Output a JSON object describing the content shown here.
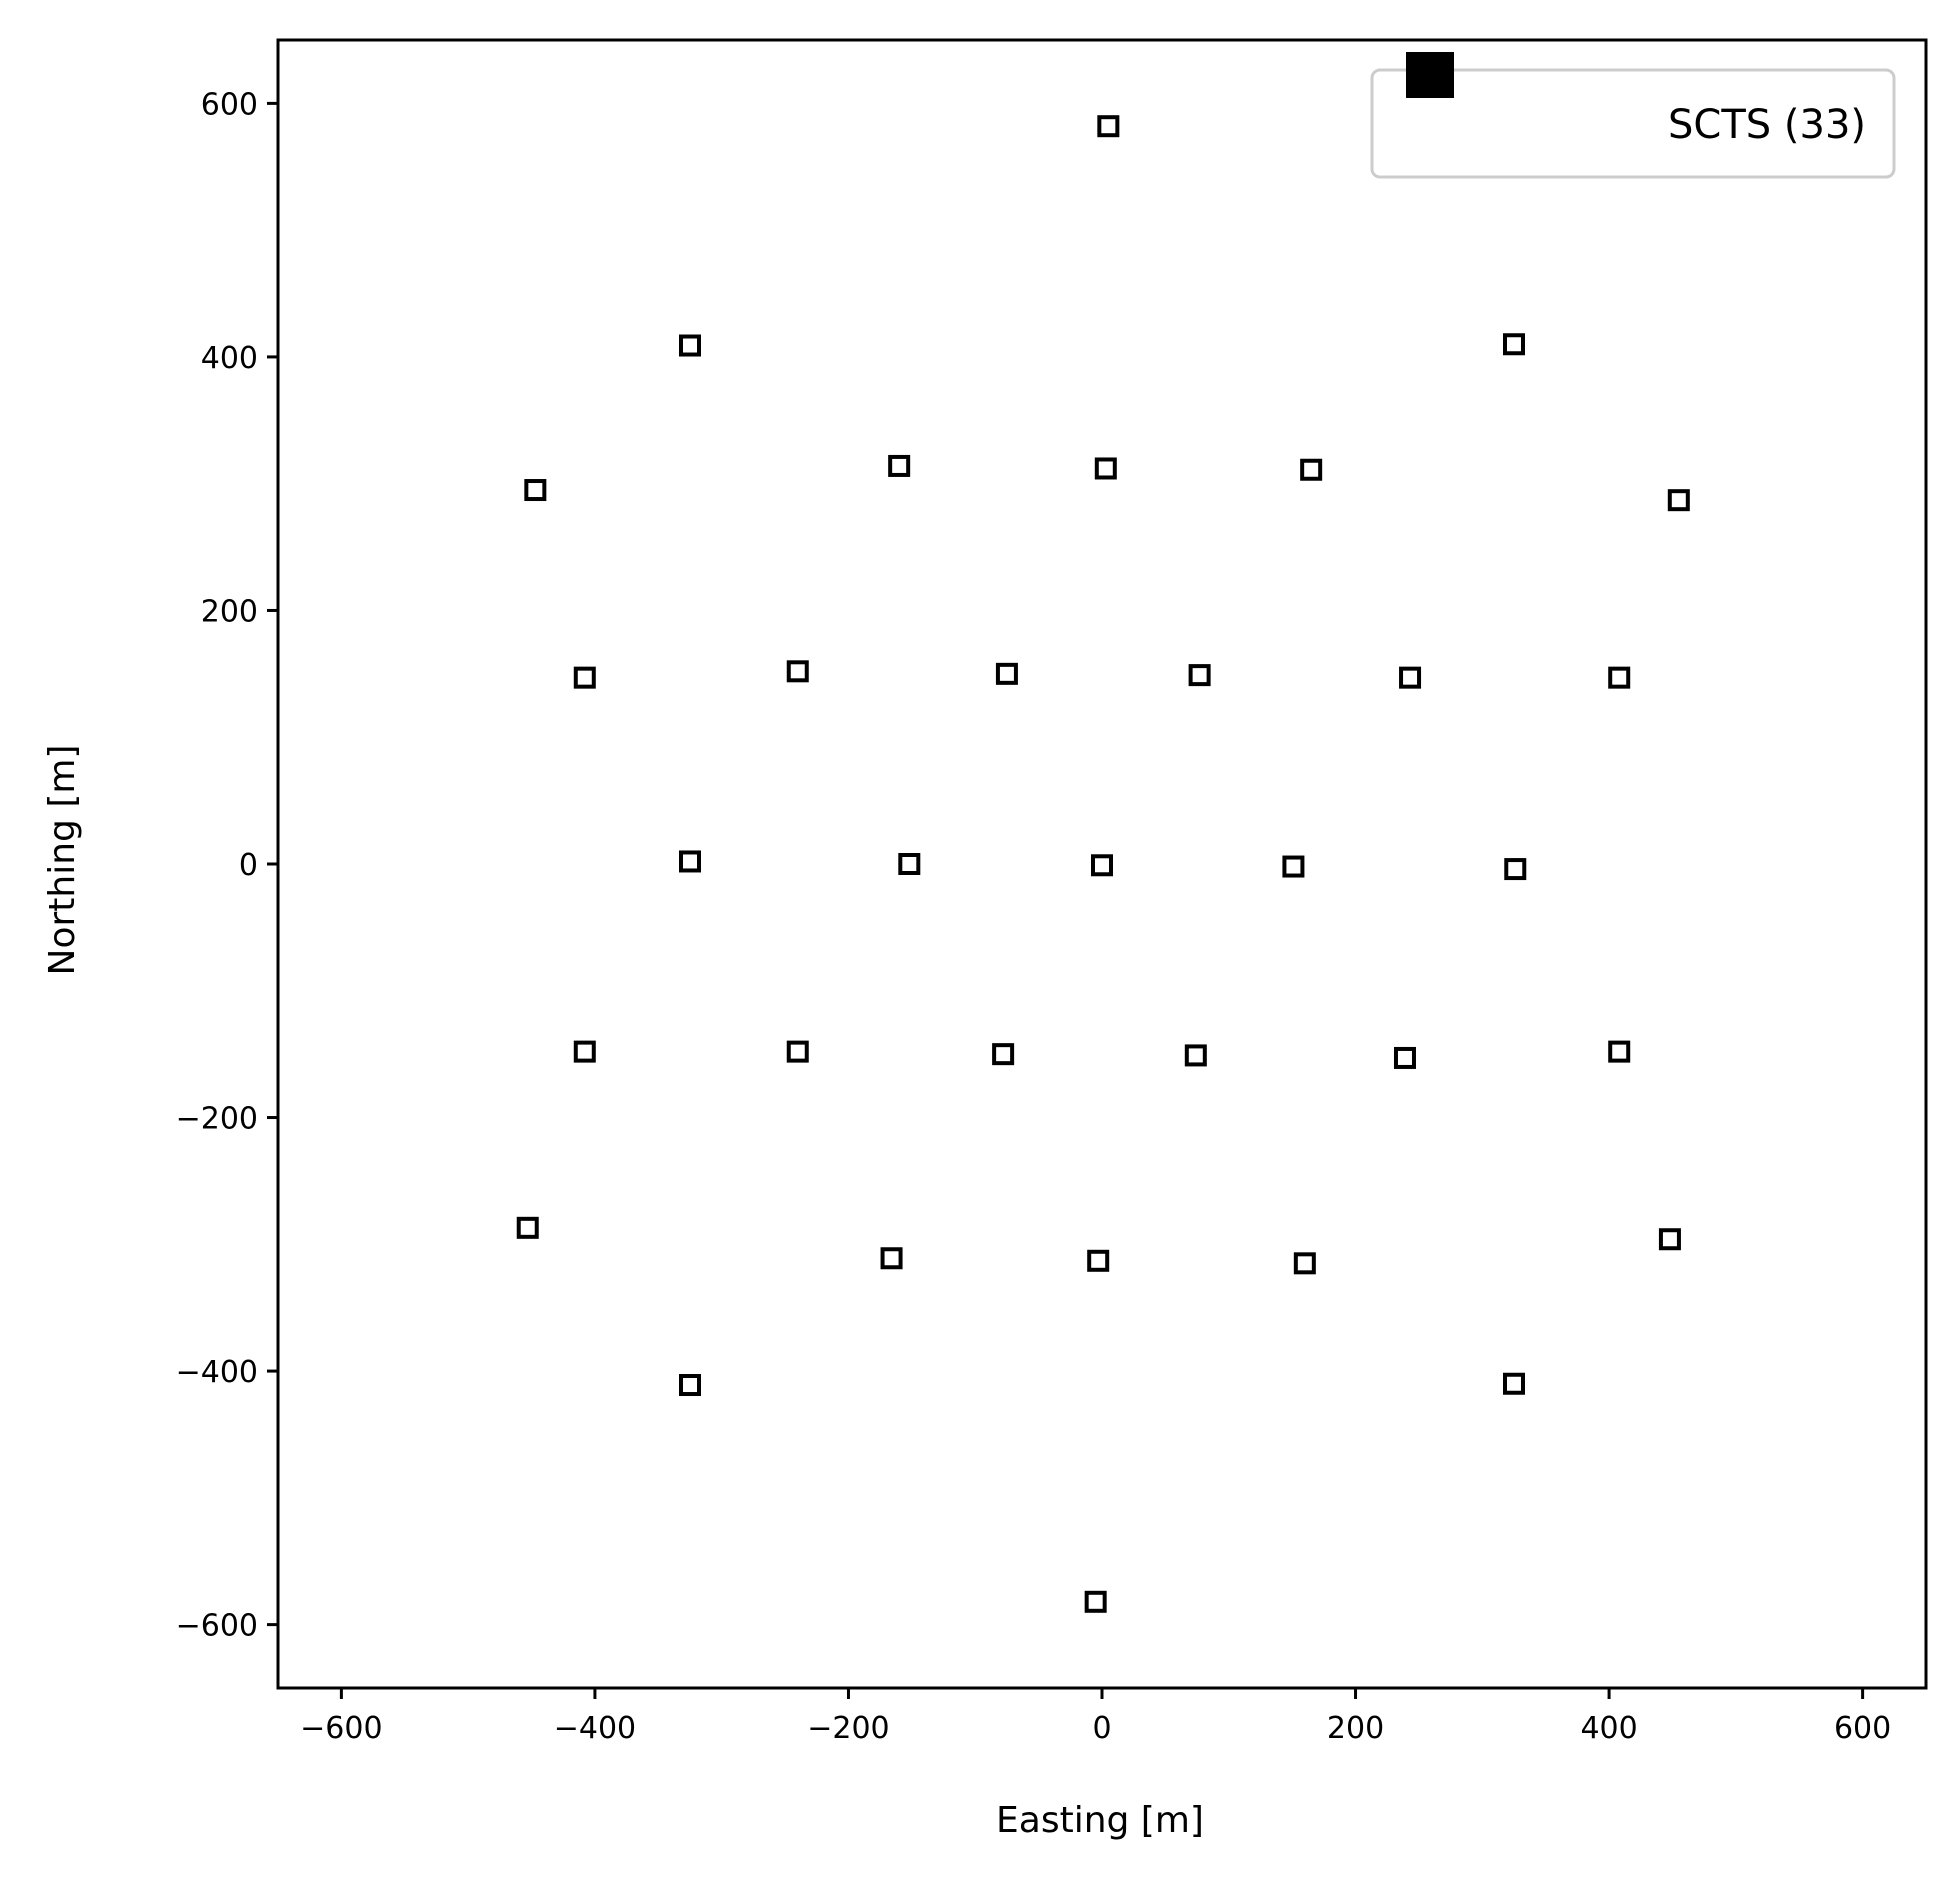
{
  "chart_data": {
    "type": "scatter",
    "xlabel": "Easting [m]",
    "ylabel": "Northing [m]",
    "xlim": [
      -650,
      650
    ],
    "ylim": [
      -650,
      650
    ],
    "xticks": [
      -600,
      -400,
      -200,
      0,
      200,
      400,
      600
    ],
    "yticks": [
      -600,
      -400,
      -200,
      0,
      200,
      400,
      600
    ],
    "xtick_labels": [
      "−600",
      "−400",
      "−200",
      "0",
      "200",
      "400",
      "600"
    ],
    "ytick_labels": [
      "−600",
      "−400",
      "−200",
      "0",
      "200",
      "400",
      "600"
    ],
    "grid": false,
    "legend": {
      "position": "top-right",
      "entries": [
        {
          "label": "SCTS (33)",
          "marker": "filled-square",
          "color": "#000000"
        }
      ]
    },
    "marker": {
      "shape": "square",
      "fill": "none",
      "stroke": "#000000"
    },
    "series": [
      {
        "name": "SCTS (33)",
        "points": [
          {
            "x": 5,
            "y": 582
          },
          {
            "x": -325,
            "y": 409
          },
          {
            "x": 325,
            "y": 410
          },
          {
            "x": -447,
            "y": 295
          },
          {
            "x": -160,
            "y": 314
          },
          {
            "x": 3,
            "y": 312
          },
          {
            "x": 165,
            "y": 311
          },
          {
            "x": 455,
            "y": 287
          },
          {
            "x": -408,
            "y": 147
          },
          {
            "x": -240,
            "y": 152
          },
          {
            "x": -75,
            "y": 150
          },
          {
            "x": 77,
            "y": 149
          },
          {
            "x": 243,
            "y": 147
          },
          {
            "x": 408,
            "y": 147
          },
          {
            "x": -325,
            "y": 2
          },
          {
            "x": -152,
            "y": 0
          },
          {
            "x": 0,
            "y": -1
          },
          {
            "x": 151,
            "y": -2
          },
          {
            "x": 326,
            "y": -4
          },
          {
            "x": -408,
            "y": -148
          },
          {
            "x": -240,
            "y": -148
          },
          {
            "x": -78,
            "y": -150
          },
          {
            "x": 74,
            "y": -151
          },
          {
            "x": 239,
            "y": -153
          },
          {
            "x": 408,
            "y": -148
          },
          {
            "x": -453,
            "y": -287
          },
          {
            "x": -166,
            "y": -311
          },
          {
            "x": -3,
            "y": -313
          },
          {
            "x": 160,
            "y": -315
          },
          {
            "x": 448,
            "y": -296
          },
          {
            "x": -325,
            "y": -411
          },
          {
            "x": 325,
            "y": -410
          },
          {
            "x": -5,
            "y": -582
          }
        ]
      }
    ]
  }
}
